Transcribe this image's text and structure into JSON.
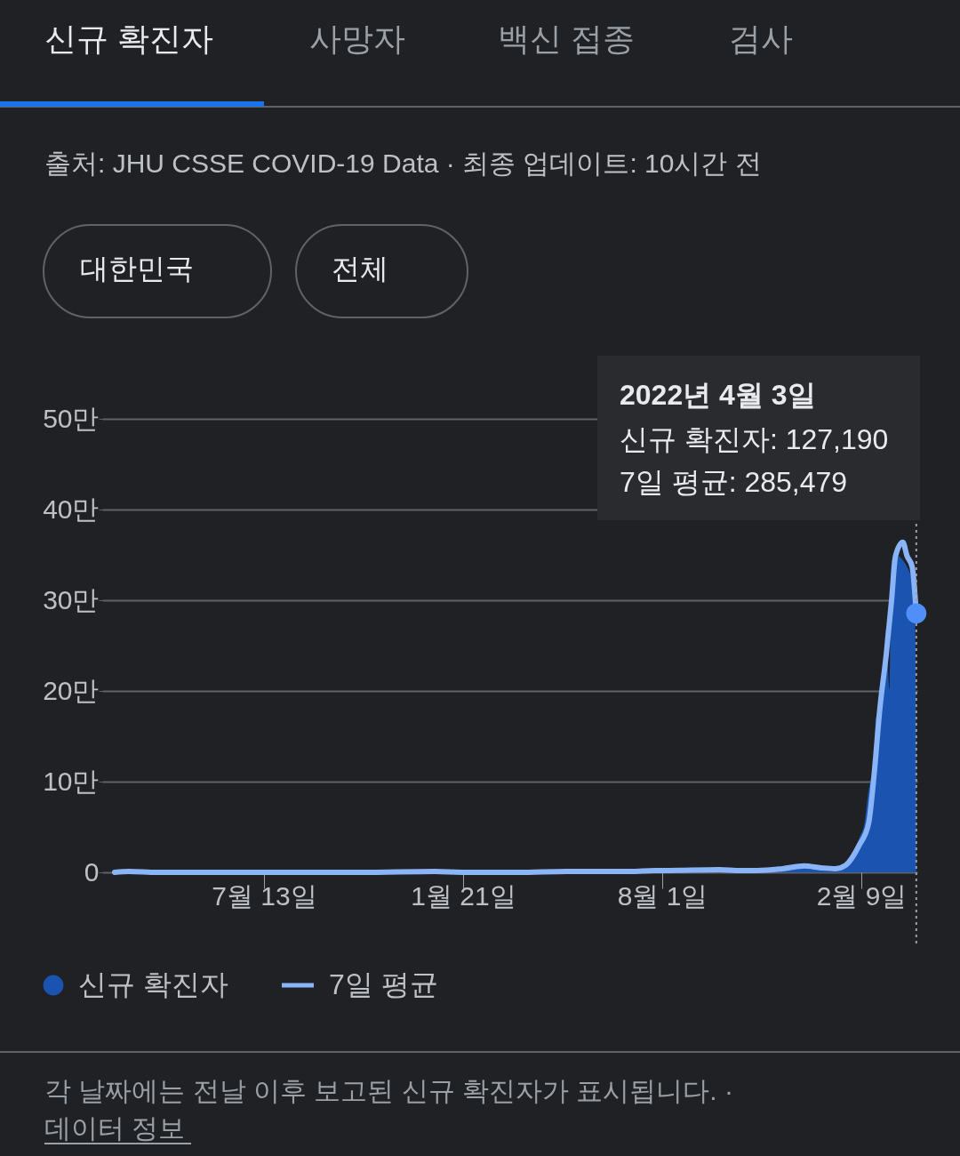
{
  "chart_data": {
    "type": "area",
    "title": "신규 확진자",
    "annotations": [
      "사망자",
      "백신 접종",
      "검사",
      "출처: JHU CSSE COVID-19 Data · 최종 업데이트: 10시간 전",
      "대한민국",
      "전체",
      "2022년 4월 3일",
      "신규 확진자: 127,190",
      "7일 평균: 285,479",
      "각 날짜에는 전날 이후 보고된 신규 확진자가 표시됩니다.  ·",
      "데이터 정보"
    ],
    "series": [
      {
        "name": "신규 확진자",
        "color": "#1a53b0",
        "x": [
          "2020-02-20",
          "2020-03-01",
          "2020-03-10",
          "2020-04-01",
          "2020-05-15",
          "2020-07-13",
          "2020-08-28",
          "2020-10-15",
          "2020-12-25",
          "2021-01-21",
          "2021-03-15",
          "2021-05-01",
          "2021-07-01",
          "2021-07-25",
          "2021-08-01",
          "2021-09-25",
          "2021-10-15",
          "2021-11-01",
          "2021-11-25",
          "2021-12-16",
          "2022-01-01",
          "2022-01-15",
          "2022-01-25",
          "2022-02-01",
          "2022-02-07",
          "2022-02-12",
          "2022-02-16",
          "2022-02-19",
          "2022-02-21",
          "2022-02-23",
          "2022-02-27",
          "2022-03-02",
          "2022-03-05",
          "2022-03-08",
          "2022-03-10",
          "2022-03-13",
          "2022-03-31",
          "2022-04-02",
          "2022-04-03"
        ],
        "values": [
          0,
          0.1,
          0,
          0,
          0,
          0,
          0,
          0,
          0.1,
          0,
          0,
          0.1,
          0.1,
          0.2,
          0.1,
          0.3,
          0.2,
          0.2,
          0.4,
          0.8,
          0.4,
          0.4,
          0.9,
          1.8,
          3.8,
          5.4,
          9,
          10.4,
          9.5,
          17.1,
          16.3,
          21.9,
          26.8,
          20.2,
          34.1,
          35,
          32.1,
          26.4,
          12.719
        ]
      },
      {
        "name": "7일 평균",
        "type": "line",
        "color": "#8ab4f8",
        "x": [
          "2020-02-20",
          "2020-03-05",
          "2020-04-01",
          "2020-05-15",
          "2020-07-13",
          "2020-08-28",
          "2020-10-15",
          "2020-12-25",
          "2021-01-21",
          "2021-03-15",
          "2021-05-01",
          "2021-07-01",
          "2021-07-25",
          "2021-08-01",
          "2021-09-25",
          "2021-10-15",
          "2021-11-01",
          "2021-11-25",
          "2021-12-16",
          "2022-01-01",
          "2022-01-15",
          "2022-01-25",
          "2022-02-07",
          "2022-02-16",
          "2022-02-21",
          "2022-02-27",
          "2022-03-05",
          "2022-03-10",
          "2022-03-14",
          "2022-03-21",
          "2022-03-25",
          "2022-03-30",
          "2022-04-03"
        ],
        "values": [
          0,
          0.1,
          0,
          0,
          0,
          0,
          0,
          0.1,
          0,
          0,
          0.1,
          0.1,
          0.2,
          0.2,
          0.3,
          0.2,
          0.2,
          0.4,
          0.7,
          0.5,
          0.4,
          0.8,
          3,
          5.4,
          10.4,
          18.2,
          24,
          29.8,
          34.9,
          36.4,
          34.9,
          33.7,
          28.5479
        ]
      }
    ],
    "xlim": [
      "2020-02-08",
      "2022-04-04"
    ],
    "xticks": [
      {
        "value": "2020-07-13",
        "label": "7월 13일"
      },
      {
        "value": "2021-01-21",
        "label": "1월 21일"
      },
      {
        "value": "2021-08-01",
        "label": "8월 1일"
      },
      {
        "value": "2022-02-09",
        "label": "2월 9일"
      }
    ],
    "ylim": [
      0,
      50
    ],
    "yticks": [
      0,
      {
        "value": 10,
        "label": "10만"
      },
      {
        "value": 20,
        "label": "20만"
      },
      {
        "value": 30,
        "label": "30만"
      },
      {
        "value": 40,
        "label": "40만"
      },
      {
        "value": 50,
        "label": "50만"
      }
    ],
    "ref_lines": [
      {
        "axis": "x",
        "value": "2022-04-03",
        "label": null,
        "color": "#9aa0a6",
        "line_style": "dotted"
      }
    ],
    "grid": "y",
    "legend": "bottom"
  }
}
